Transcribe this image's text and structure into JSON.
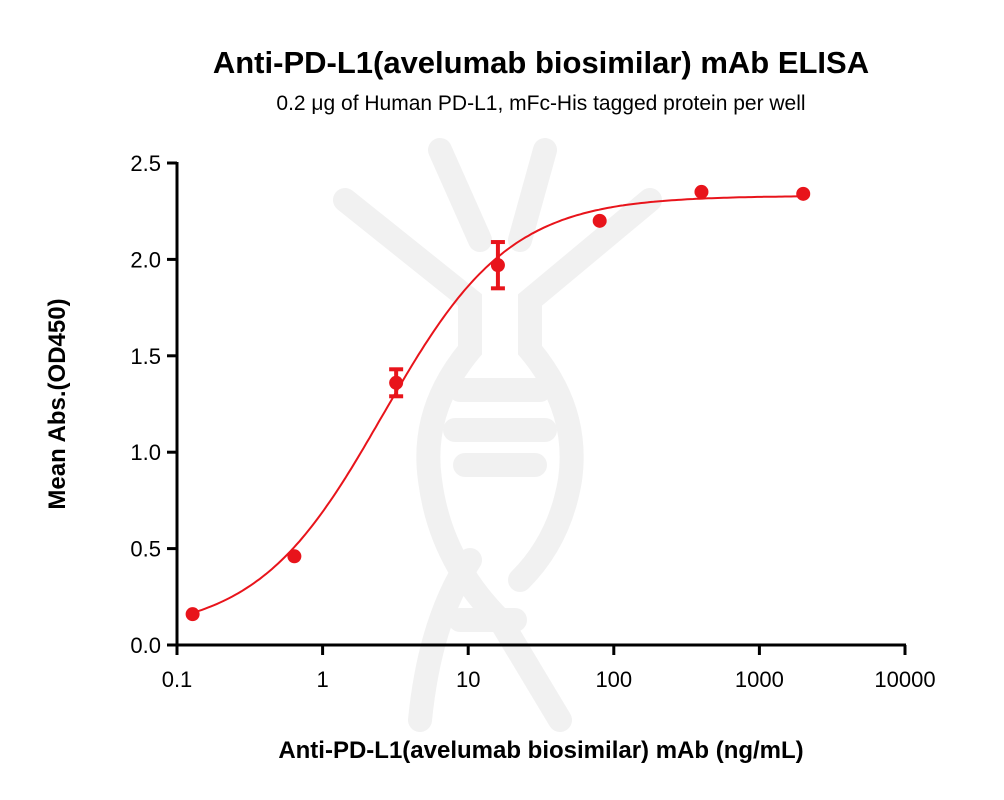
{
  "chart_data": {
    "type": "scatter",
    "title": "Anti-PD-L1(avelumab biosimilar) mAb ELISA",
    "subtitle": "0.2 μg of Human PD-L1,  mFc-His tagged protein per well",
    "xlabel": "Anti-PD-L1(avelumab biosimilar) mAb (ng/mL)",
    "ylabel": "Mean Abs.(OD450)",
    "xscale": "log",
    "xlim": [
      0.1,
      10000
    ],
    "ylim": [
      0,
      2.5
    ],
    "xticks": [
      "0.1",
      "1",
      "10",
      "100",
      "1000",
      "10000"
    ],
    "yticks": [
      "0.0",
      "0.5",
      "1.0",
      "1.5",
      "2.0",
      "2.5"
    ],
    "grid": false,
    "color": "#e8141b",
    "points": [
      {
        "x": 0.128,
        "y": 0.16,
        "err": 0
      },
      {
        "x": 0.64,
        "y": 0.46,
        "err": 0
      },
      {
        "x": 3.2,
        "y": 1.36,
        "err": 0.07
      },
      {
        "x": 16,
        "y": 1.97,
        "err": 0.12
      },
      {
        "x": 80,
        "y": 2.2,
        "err": 0
      },
      {
        "x": 400,
        "y": 2.35,
        "err": 0
      },
      {
        "x": 2000,
        "y": 2.34,
        "err": 0
      }
    ],
    "fit": {
      "model": "4PL",
      "bottom": 0.06,
      "top": 2.33,
      "ec50": 2.6,
      "hill": 1.0
    }
  }
}
